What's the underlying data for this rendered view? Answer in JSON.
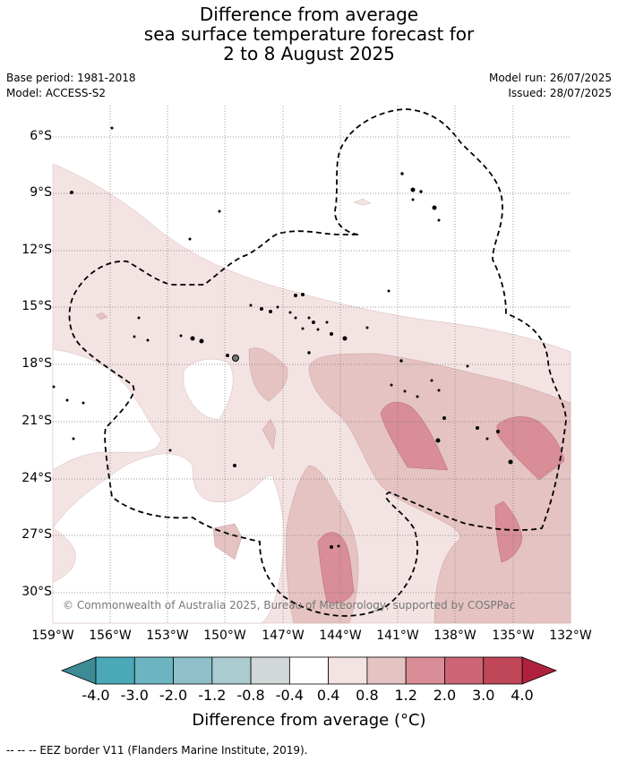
{
  "title": {
    "line1": "Difference from average",
    "line2": "sea surface temperature forecast for",
    "line3": "2 to 8 August 2025"
  },
  "meta": {
    "base_period": "Base period: 1981-2018",
    "model": "Model: ACCESS-S2",
    "model_run": "Model run: 26/07/2025",
    "issued": "Issued: 28/07/2025"
  },
  "map": {
    "lat_labels": [
      "6°S",
      "9°S",
      "12°S",
      "15°S",
      "18°S",
      "21°S",
      "24°S",
      "27°S",
      "30°S"
    ],
    "lon_labels": [
      "159°W",
      "156°W",
      "153°W",
      "150°W",
      "147°W",
      "144°W",
      "141°W",
      "138°W",
      "135°W",
      "132°W"
    ],
    "copyright": "© Commonwealth of Australia 2025, Bureau of Meteorology, supported by COSPPac"
  },
  "colorbar": {
    "labels": [
      "-4.0",
      "-3.0",
      "-2.0",
      "-1.2",
      "-0.8",
      "-0.4",
      "0.4",
      "0.8",
      "1.2",
      "2.0",
      "3.0",
      "4.0"
    ],
    "colors": [
      "#4aa8b7",
      "#6cb4c2",
      "#8fbfc9",
      "#aacbcf",
      "#d2d7d9",
      "#ffffff",
      "#f4e3e3",
      "#e5c3c2",
      "#d88d97",
      "#cc6674",
      "#c04757"
    ],
    "extend_low_color": "#3c8b95",
    "extend_high_color": "#b0213d",
    "title": "Difference from average (°C)"
  },
  "footnote": "--  --  -- EEZ border V11 (Flanders Marine Institute, 2019)."
}
